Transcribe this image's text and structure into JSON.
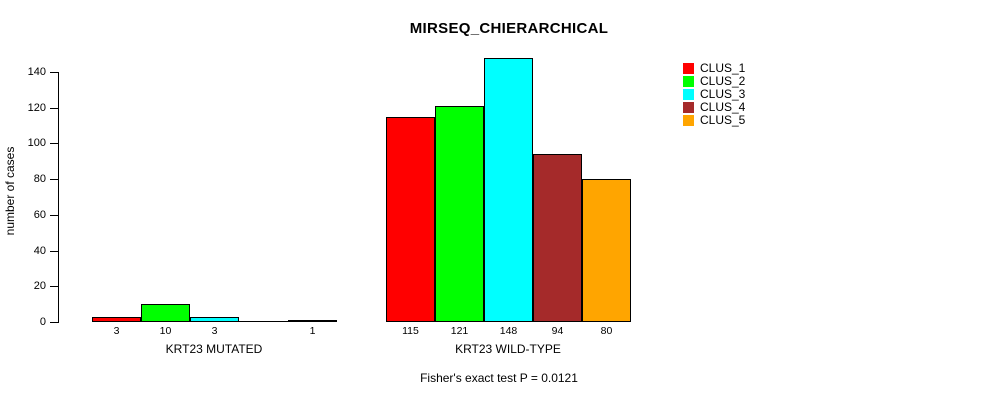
{
  "chart_data": {
    "type": "bar",
    "title": "MIRSEQ_CHIERARCHICAL",
    "ylabel": "number of cases",
    "xlabel": "",
    "ylim": [
      0,
      140
    ],
    "yticks": [
      0,
      20,
      40,
      60,
      80,
      100,
      120,
      140
    ],
    "grid": false,
    "legend_position": "top-right",
    "categories": [
      "KRT23 MUTATED",
      "KRT23 WILD-TYPE"
    ],
    "series": [
      {
        "name": "CLUS_1",
        "color": "#FF0000",
        "values": [
          3,
          115
        ]
      },
      {
        "name": "CLUS_2",
        "color": "#00FF00",
        "values": [
          10,
          121
        ]
      },
      {
        "name": "CLUS_3",
        "color": "#00FFFF",
        "values": [
          3,
          148
        ]
      },
      {
        "name": "CLUS_4",
        "color": "#A52A2A",
        "values": [
          0,
          94
        ]
      },
      {
        "name": "CLUS_5",
        "color": "#FFA500",
        "values": [
          1,
          80
        ]
      }
    ],
    "groups": [
      {
        "label": "KRT23 MUTATED",
        "values": [
          3,
          10,
          3,
          0,
          1
        ],
        "bar_labels": [
          "3",
          "10",
          "3",
          "",
          "1"
        ]
      },
      {
        "label": "KRT23 WILD-TYPE",
        "values": [
          115,
          121,
          148,
          94,
          80
        ],
        "bar_labels": [
          "115",
          "121",
          "148",
          "94",
          "80"
        ]
      }
    ],
    "annotation": "Fisher's exact test P = 0.0121"
  }
}
